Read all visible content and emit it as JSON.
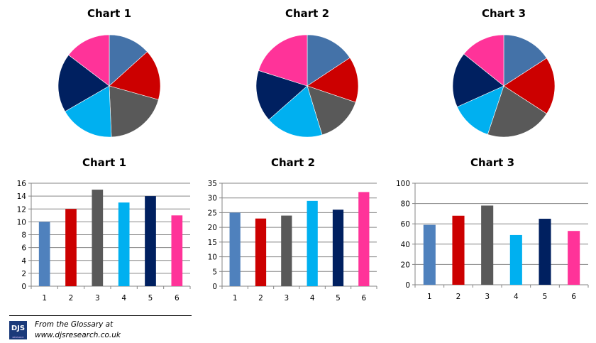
{
  "colors": [
    "#4f81bd",
    "#cc0000",
    "#595959",
    "#00b0f0",
    "#002060",
    "#ff3399"
  ],
  "pie_colors": [
    "#4472a8",
    "#cc0000",
    "#595959",
    "#00b0f0",
    "#002060",
    "#ff3399"
  ],
  "footer": {
    "logo_text": "DJS",
    "logo_sub": "RESEARCH",
    "line1": "From the Glossary at",
    "line2": "www.djsresearch.co.uk"
  },
  "chart_data": [
    {
      "type": "pie",
      "title": "Chart 1",
      "categories": [
        "1",
        "2",
        "3",
        "4",
        "5",
        "6"
      ],
      "values": [
        10,
        12,
        15,
        13,
        14,
        11
      ]
    },
    {
      "type": "pie",
      "title": "Chart 2",
      "categories": [
        "1",
        "2",
        "3",
        "4",
        "5",
        "6"
      ],
      "values": [
        25,
        23,
        24,
        29,
        26,
        32
      ]
    },
    {
      "type": "pie",
      "title": "Chart 3",
      "categories": [
        "1",
        "2",
        "3",
        "4",
        "5",
        "6"
      ],
      "values": [
        59,
        68,
        78,
        49,
        65,
        53
      ]
    },
    {
      "type": "bar",
      "title": "Chart 1",
      "categories": [
        "1",
        "2",
        "3",
        "4",
        "5",
        "6"
      ],
      "values": [
        10,
        12,
        15,
        13,
        14,
        11
      ],
      "ylim": [
        0,
        16
      ],
      "ystep": 2,
      "yticks": [
        "0",
        "2",
        "4",
        "6",
        "8",
        "10",
        "12",
        "14",
        "16"
      ],
      "grid": true
    },
    {
      "type": "bar",
      "title": "Chart 2",
      "categories": [
        "1",
        "2",
        "3",
        "4",
        "5",
        "6"
      ],
      "values": [
        25,
        23,
        24,
        29,
        26,
        32
      ],
      "ylim": [
        0,
        35
      ],
      "ystep": 5,
      "yticks": [
        "0",
        "5",
        "10",
        "15",
        "20",
        "25",
        "30",
        "35"
      ],
      "grid": true
    },
    {
      "type": "bar",
      "title": "Chart 3",
      "categories": [
        "1",
        "2",
        "3",
        "4",
        "5",
        "6"
      ],
      "values": [
        59,
        68,
        78,
        49,
        65,
        53
      ],
      "ylim": [
        0,
        100
      ],
      "ystep": 20,
      "yticks": [
        "0",
        "20",
        "40",
        "60",
        "80",
        "100"
      ],
      "grid": true
    }
  ]
}
